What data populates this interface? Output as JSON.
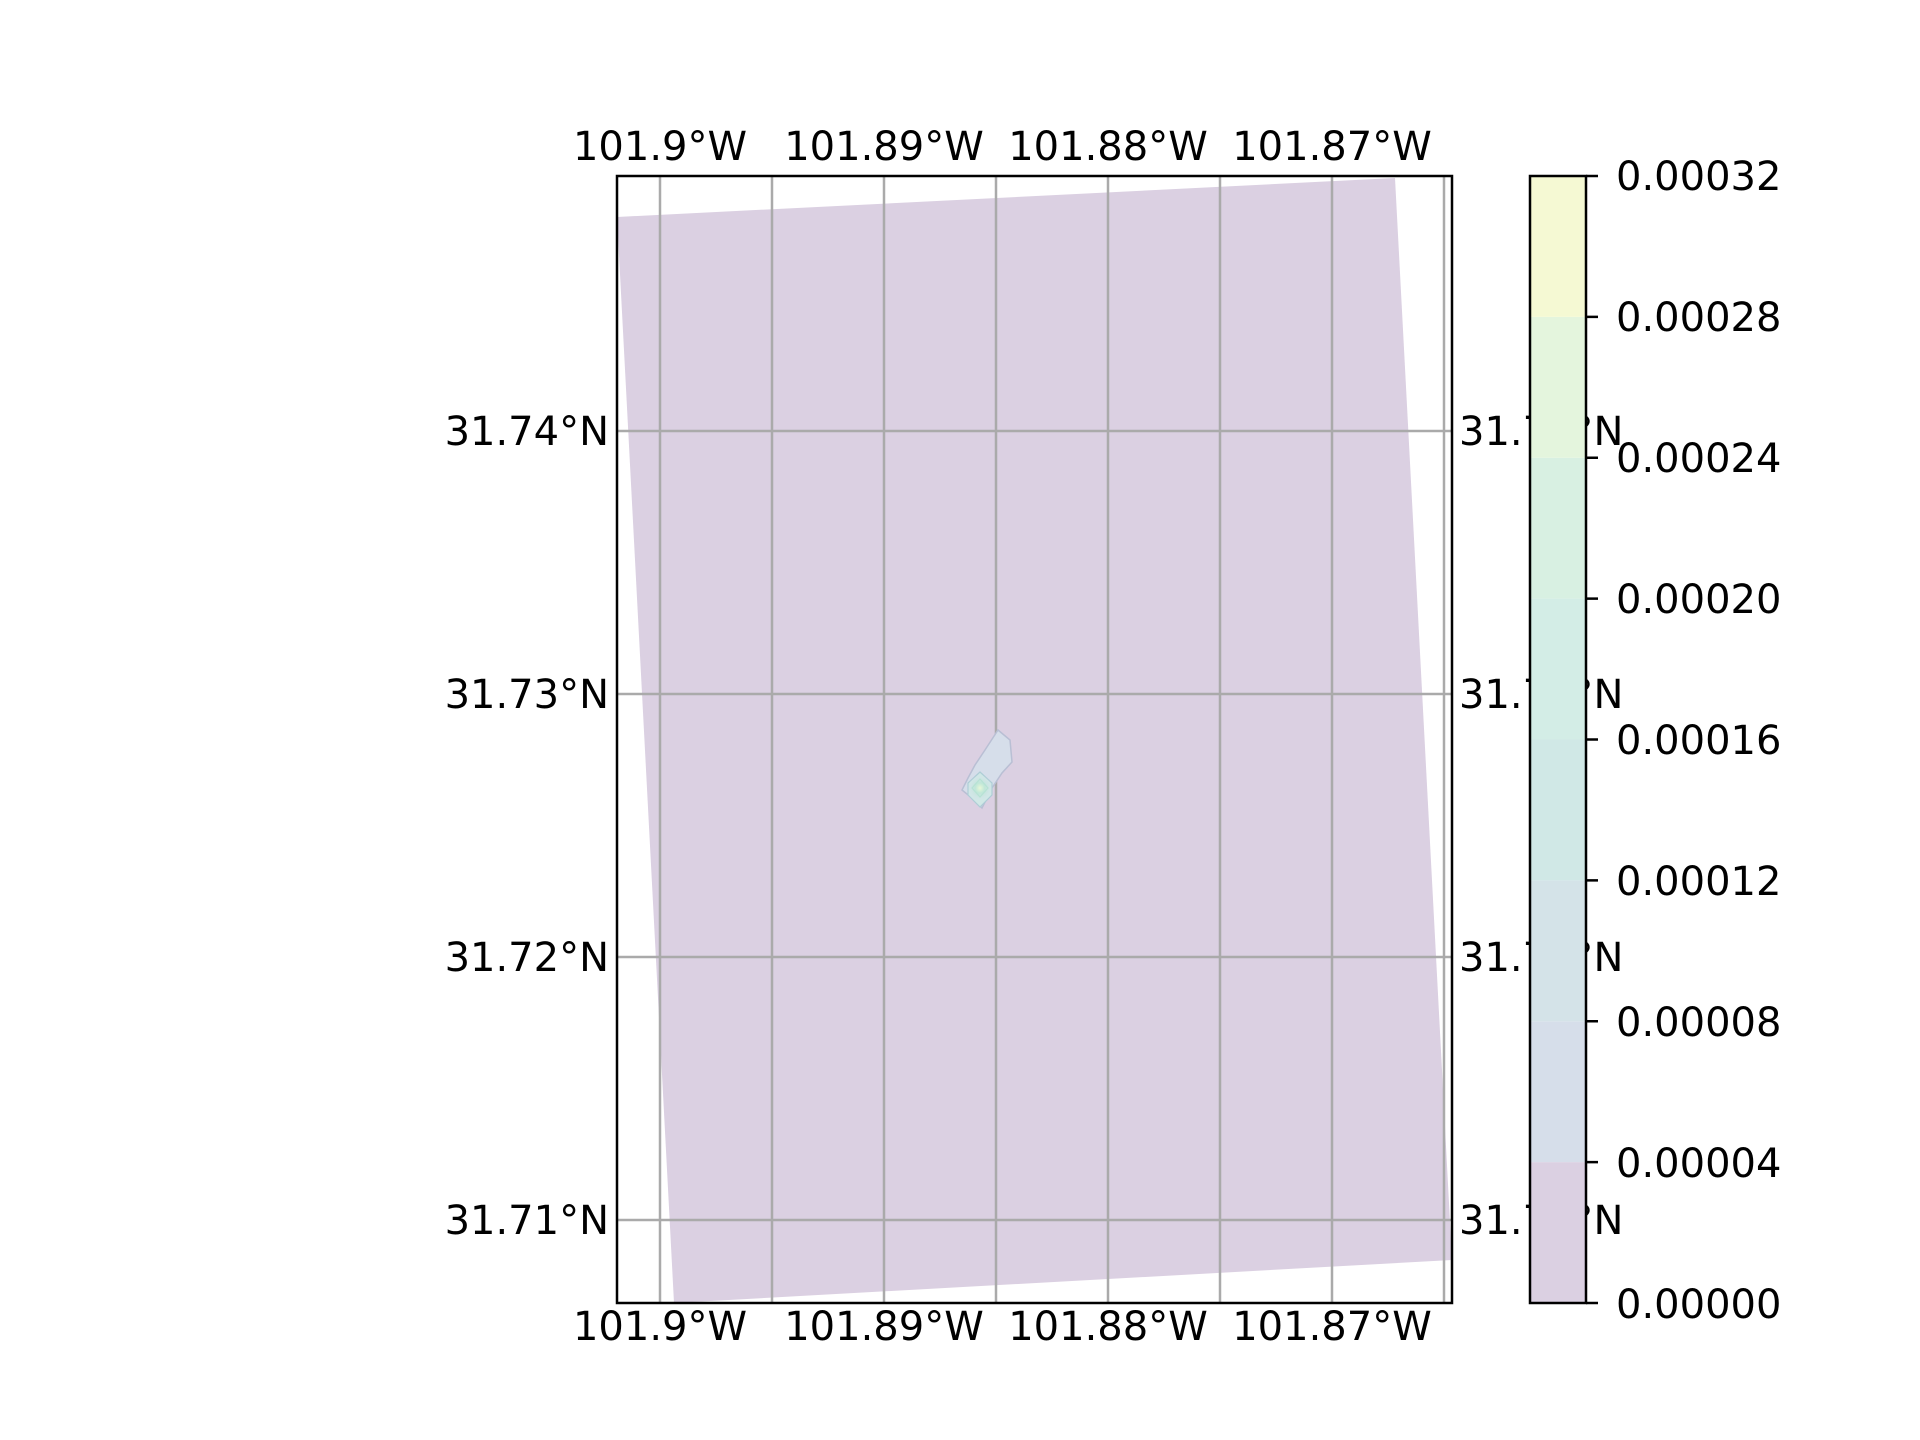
{
  "map": {
    "top_lon_labels": [
      "101.9°W",
      "101.89°W",
      "101.88°W",
      "101.87°W"
    ],
    "bottom_lon_labels": [
      "101.9°W",
      "101.89°W",
      "101.88°W",
      "101.87°W"
    ],
    "left_lat_labels": [
      "31.74°N",
      "31.73°N",
      "31.72°N",
      "31.71°N"
    ],
    "right_lat_labels": [
      "31.74°N",
      "31.73°N",
      "31.72°N",
      "31.71°N"
    ],
    "gridlines": true,
    "data_fill_color": "#dbd0e2",
    "plume": {
      "location_lon": -101.885,
      "location_lat": 31.7265,
      "peak_value": 0.00024
    }
  },
  "colorbar": {
    "tick_labels": [
      "0.00032",
      "0.00028",
      "0.00024",
      "0.00020",
      "0.00016",
      "0.00012",
      "0.00008",
      "0.00004",
      "0.00000"
    ],
    "levels": [
      0.0,
      4e-05,
      8e-05,
      0.00012,
      0.00016,
      0.0002,
      0.00024,
      0.00028,
      0.00032
    ],
    "colors": [
      "#dbd0e2",
      "#d8d8e8",
      "#d6deea",
      "#d4e3e8",
      "#d0e8e6",
      "#d3ede6",
      "#d8f0e2",
      "#e4f5dd",
      "#f5f9d3"
    ]
  }
}
